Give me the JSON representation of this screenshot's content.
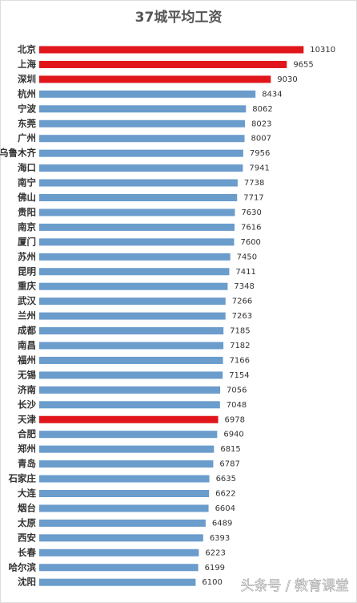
{
  "chart_data": {
    "type": "barh",
    "title": "37城平均工资",
    "categories": [
      "北京",
      "上海",
      "深圳",
      "杭州",
      "宁波",
      "东莞",
      "广州",
      "乌鲁木齐",
      "海口",
      "南宁",
      "佛山",
      "贵阳",
      "南京",
      "厦门",
      "苏州",
      "昆明",
      "重庆",
      "武汉",
      "兰州",
      "成都",
      "南昌",
      "福州",
      "无锡",
      "济南",
      "长沙",
      "天津",
      "合肥",
      "郑州",
      "青岛",
      "石家庄",
      "大连",
      "烟台",
      "太原",
      "西安",
      "长春",
      "哈尔滨",
      "沈阳"
    ],
    "values": [
      10310,
      9655,
      9030,
      8434,
      8062,
      8023,
      8007,
      7956,
      7941,
      7738,
      7717,
      7630,
      7616,
      7600,
      7450,
      7411,
      7348,
      7266,
      7263,
      7185,
      7182,
      7166,
      7154,
      7056,
      7048,
      6978,
      6940,
      6815,
      6787,
      6635,
      6622,
      6604,
      6489,
      6393,
      6223,
      6199,
      6100
    ],
    "colors": [
      "#e0161b",
      "#e0161b",
      "#e0161b",
      "#6a9ccc",
      "#6a9ccc",
      "#6a9ccc",
      "#6a9ccc",
      "#6a9ccc",
      "#6a9ccc",
      "#6a9ccc",
      "#6a9ccc",
      "#6a9ccc",
      "#6a9ccc",
      "#6a9ccc",
      "#6a9ccc",
      "#6a9ccc",
      "#6a9ccc",
      "#6a9ccc",
      "#6a9ccc",
      "#6a9ccc",
      "#6a9ccc",
      "#6a9ccc",
      "#6a9ccc",
      "#6a9ccc",
      "#6a9ccc",
      "#e0161b",
      "#6a9ccc",
      "#6a9ccc",
      "#6a9ccc",
      "#6a9ccc",
      "#6a9ccc",
      "#6a9ccc",
      "#6a9ccc",
      "#6a9ccc",
      "#6a9ccc",
      "#6a9ccc",
      "#6a9ccc"
    ],
    "xlim": [
      0,
      10800
    ]
  },
  "watermark": "头条号 / 教育课堂"
}
